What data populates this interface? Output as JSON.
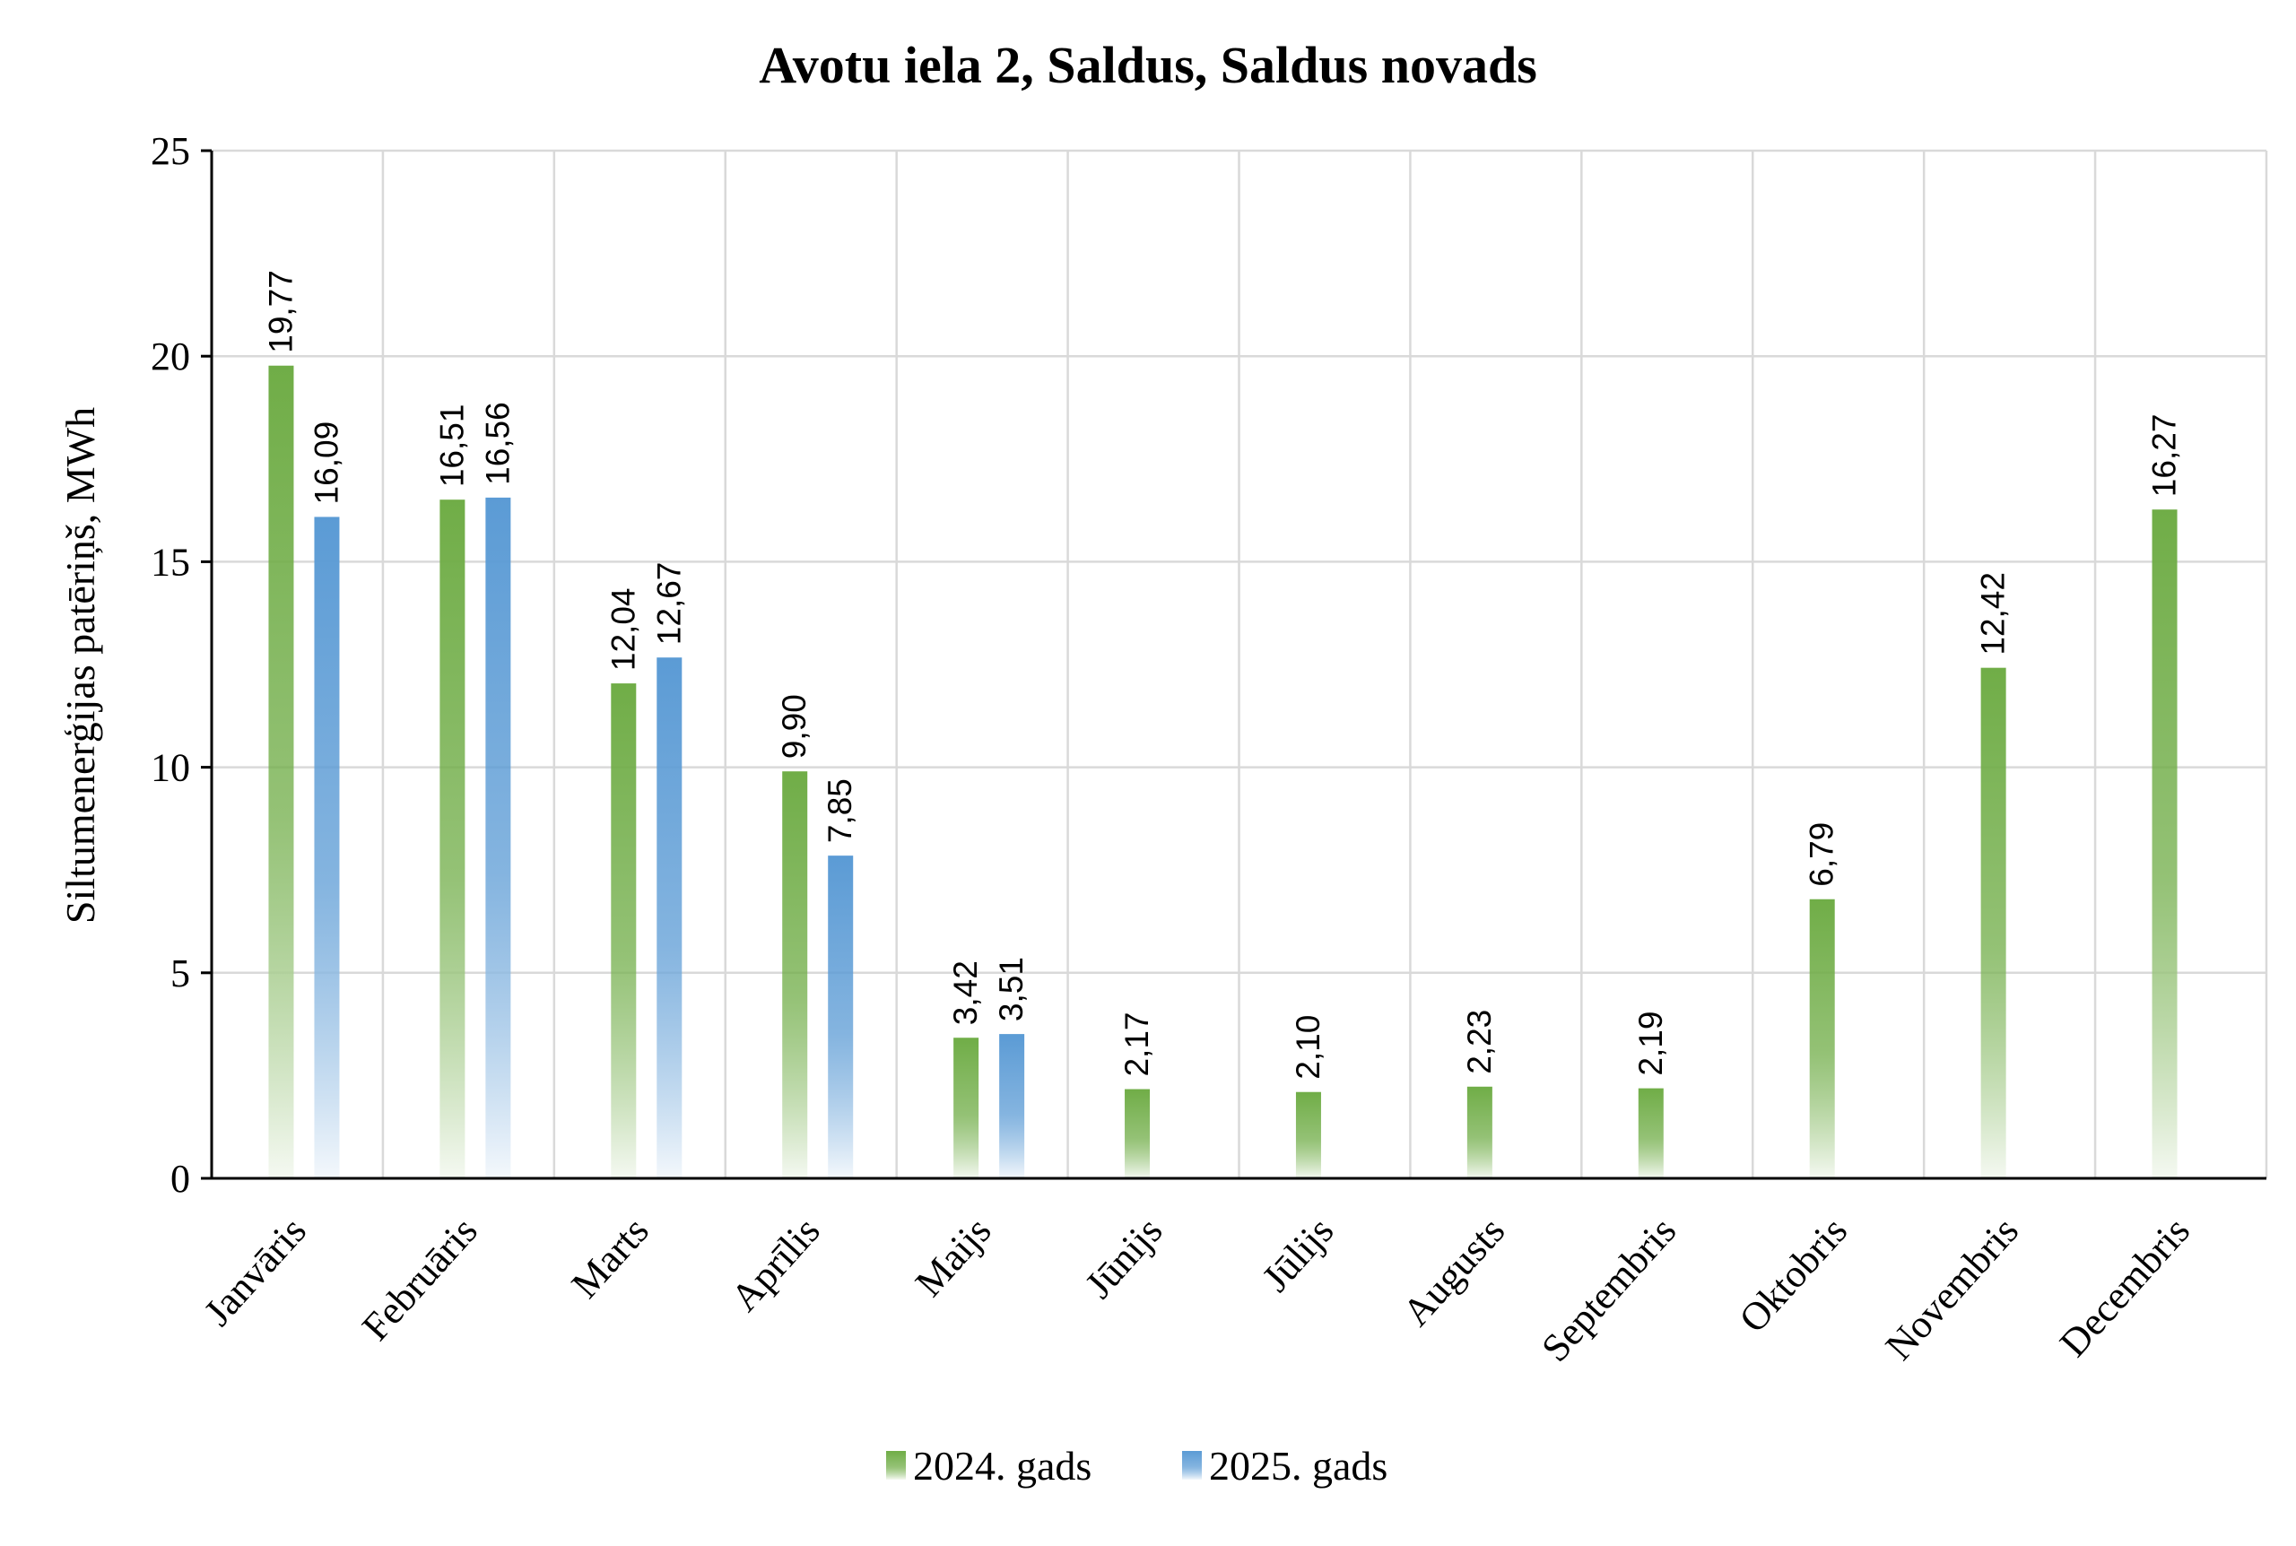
{
  "chart_data": {
    "type": "bar",
    "title": "Avotu iela 2, Saldus, Saldus novads",
    "xlabel": "",
    "ylabel": "Siltumenerģijas patēriņš, MWh",
    "ylim": [
      0,
      25
    ],
    "yticks": [
      0,
      5,
      10,
      15,
      20,
      25
    ],
    "grid": true,
    "legend_position": "bottom",
    "categories": [
      "Janvāris",
      "Februāris",
      "Marts",
      "Aprīlis",
      "Maijs",
      "Jūnijs",
      "Jūlijs",
      "Augusts",
      "Septembris",
      "Oktobris",
      "Novembris",
      "Decembris"
    ],
    "series": [
      {
        "name": "2024. gads",
        "color": "#70ad47",
        "values": [
          19.77,
          16.51,
          12.04,
          9.9,
          3.42,
          2.17,
          2.1,
          2.23,
          2.19,
          6.79,
          12.42,
          16.27
        ],
        "labels": [
          "19,77",
          "16,51",
          "12,04",
          "9,90",
          "3,42",
          "2,17",
          "2,10",
          "2,23",
          "2,19",
          "6,79",
          "12,42",
          "16,27"
        ]
      },
      {
        "name": "2025. gads",
        "color": "#5b9bd5",
        "values": [
          16.09,
          16.56,
          12.67,
          7.85,
          3.51,
          null,
          null,
          null,
          null,
          null,
          null,
          null
        ],
        "labels": [
          "16,09",
          "16,56",
          "12,67",
          "7,85",
          "3,51",
          null,
          null,
          null,
          null,
          null,
          null,
          null
        ]
      }
    ]
  }
}
